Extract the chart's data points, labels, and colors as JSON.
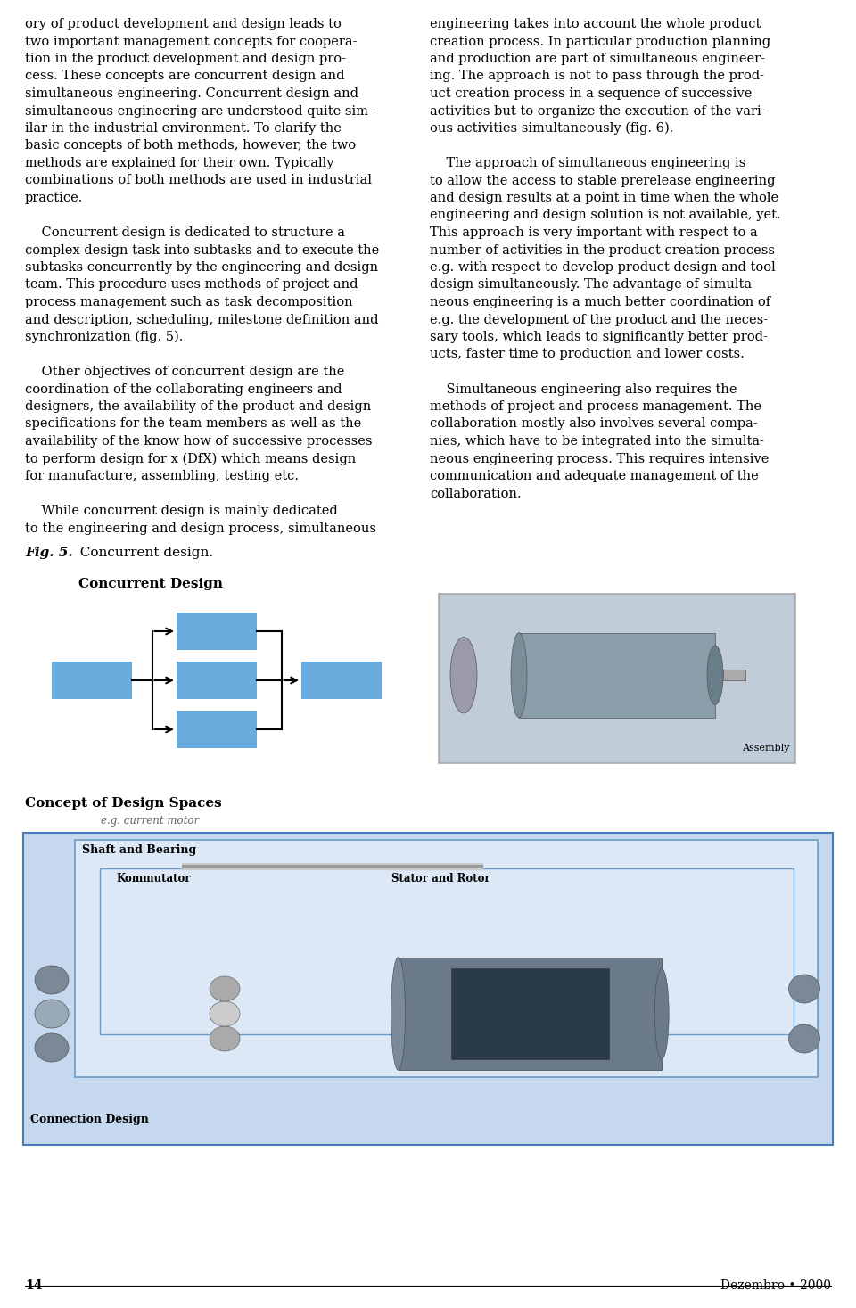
{
  "page_width": 9.6,
  "page_height": 14.67,
  "bg_color": "#ffffff",
  "text_color": "#000000",
  "body_font": "serif",
  "left_column_text": [
    "ory of product development and design leads to",
    "two important management concepts for coopera-",
    "tion in the product development and design pro-",
    "cess. These concepts are concurrent design and",
    "simultaneous engineering. Concurrent design and",
    "simultaneous engineering are understood quite sim-",
    "ilar in the industrial environment. To clarify the",
    "basic concepts of both methods, however, the two",
    "methods are explained for their own. Typically",
    "combinations of both methods are used in industrial",
    "practice.",
    "",
    "    Concurrent design is dedicated to structure a",
    "complex design task into subtasks and to execute the",
    "subtasks concurrently by the engineering and design",
    "team. This procedure uses methods of project and",
    "process management such as task decomposition",
    "and description, scheduling, milestone definition and",
    "synchronization (fig. 5).",
    "",
    "    Other objectives of concurrent design are the",
    "coordination of the collaborating engineers and",
    "designers, the availability of the product and design",
    "specifications for the team members as well as the",
    "availability of the know how of successive processes",
    "to perform design for x (DfX) which means design",
    "for manufacture, assembling, testing etc.",
    "",
    "    While concurrent design is mainly dedicated",
    "to the engineering and design process, simultaneous"
  ],
  "right_column_text": [
    "engineering takes into account the whole product",
    "creation process. In particular production planning",
    "and production are part of simultaneous engineer-",
    "ing. The approach is not to pass through the prod-",
    "uct creation process in a sequence of successive",
    "activities but to organize the execution of the vari-",
    "ous activities simultaneously (fig. 6).",
    "",
    "    The approach of simultaneous engineering is",
    "to allow the access to stable prerelease engineering",
    "and design results at a point in time when the whole",
    "engineering and design solution is not available, yet.",
    "This approach is very important with respect to a",
    "number of activities in the product creation process",
    "e.g. with respect to develop product design and tool",
    "design simultaneously. The advantage of simulta-",
    "neous engineering is a much better coordination of",
    "e.g. the development of the product and the neces-",
    "sary tools, which leads to significantly better prod-",
    "ucts, faster time to production and lower costs.",
    "",
    "    Simultaneous engineering also requires the",
    "methods of project and process management. The",
    "collaboration mostly also involves several compa-",
    "nies, which have to be integrated into the simulta-",
    "neous engineering process. This requires intensive",
    "communication and adequate management of the",
    "collaboration."
  ],
  "fig5_label": "Fig. 5.",
  "fig5_caption": "  Concurrent design.",
  "concurrent_design_title": "Concurrent Design",
  "assembly_label": "Assembly",
  "concept_title": "Concept of Design Spaces",
  "concept_subtitle": "e.g. current motor",
  "shaft_label": "Shaft and Bearing",
  "kommutator_label": "Kommutator",
  "stator_label": "Stator and Rotor",
  "connection_label": "Connection Design",
  "page_number": "14",
  "date_label": "Dezembro • 2000",
  "blue_box_color": "#6aabdd",
  "light_blue_bg": "#c8ddef",
  "border_color": "#4472c4"
}
